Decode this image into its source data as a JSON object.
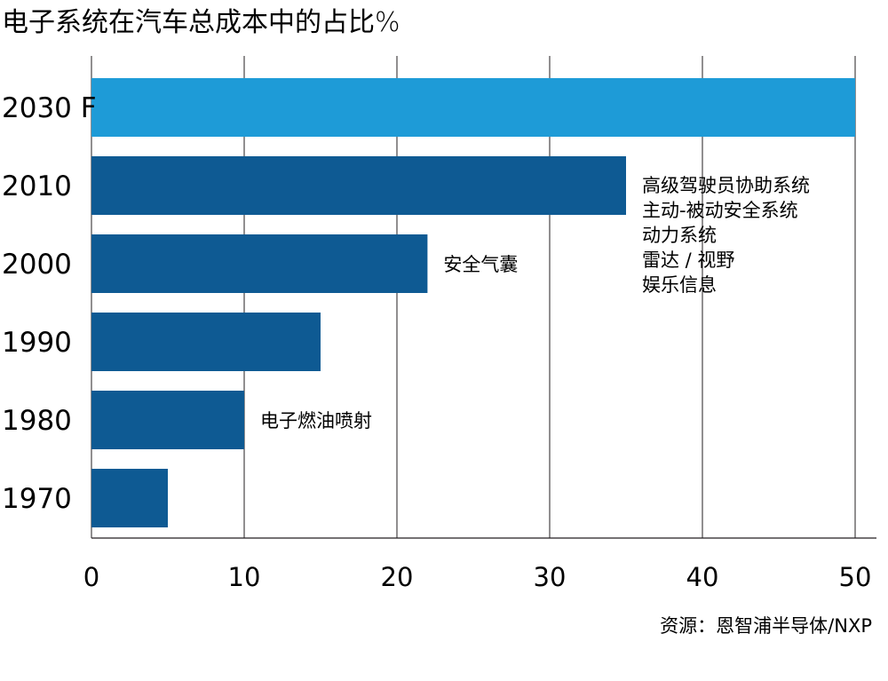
{
  "title": "电子系统在汽车总成本中的占比%",
  "source": "资源：恩智浦半导体/NXP",
  "colors": {
    "forecast": "#1e9bd7",
    "actual": "#0e5a93",
    "grid": "#231f20",
    "text": "#231f20"
  },
  "chart_data": {
    "type": "bar",
    "orientation": "horizontal",
    "title": "电子系统在汽车总成本中的占比%",
    "xlabel": "",
    "ylabel": "",
    "categories": [
      "2030 F",
      "2010",
      "2000",
      "1990",
      "1980",
      "1970"
    ],
    "values": [
      50,
      35,
      22,
      15,
      10,
      5
    ],
    "highlight": [
      "forecast",
      "actual",
      "actual",
      "actual",
      "actual",
      "actual"
    ],
    "xlim": [
      0,
      50
    ],
    "xticks": [
      0,
      10,
      20,
      30,
      40,
      50
    ],
    "grid": "vertical",
    "annotations": [
      {
        "category": "2010",
        "lines": [
          "高级驾驶员协助系统",
          "主动-被动安全系统",
          "动力系统",
          "雷达 / 视野",
          "娱乐信息"
        ]
      },
      {
        "category": "2000",
        "lines": [
          "安全气囊"
        ]
      },
      {
        "category": "1980",
        "lines": [
          "电子燃油喷射"
        ]
      }
    ]
  }
}
